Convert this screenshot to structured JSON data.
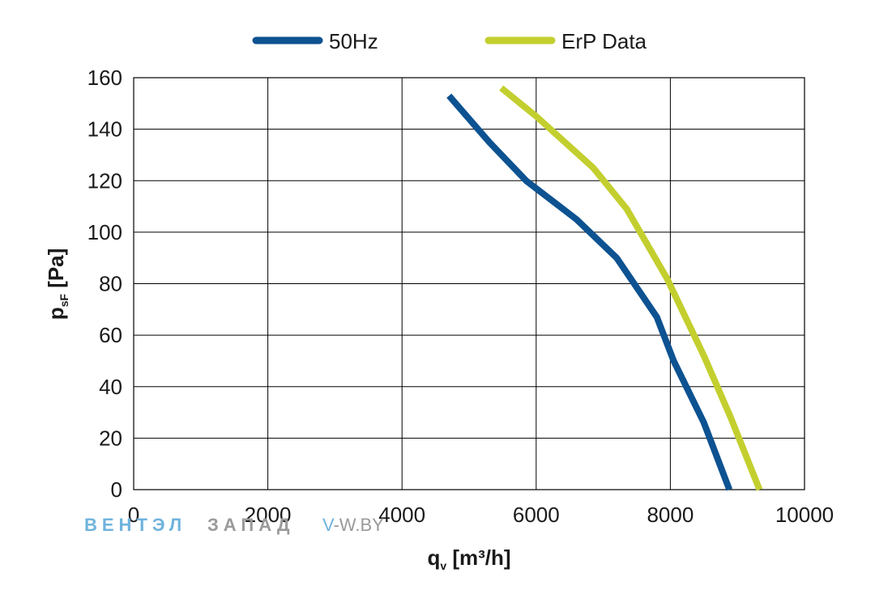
{
  "chart_data": {
    "type": "line",
    "title": "",
    "xlabel": "q",
    "xlabel_sub": "v",
    "xlabel_unit": " [m³/h]",
    "ylabel": "p",
    "ylabel_sub": "sF",
    "ylabel_unit": " [Pa]",
    "xlim": [
      0,
      10000
    ],
    "ylim": [
      0,
      160
    ],
    "xticks": [
      "0",
      "2000",
      "4000",
      "6000",
      "8000",
      "10000"
    ],
    "yticks": [
      "0",
      "20",
      "40",
      "60",
      "80",
      "100",
      "120",
      "140",
      "160"
    ],
    "grid": true,
    "legend_position": "top-center",
    "series": [
      {
        "name": "50Hz",
        "color": "#0d5291",
        "points": [
          [
            4700,
            153
          ],
          [
            5300,
            135
          ],
          [
            5850,
            120
          ],
          [
            6600,
            105
          ],
          [
            7200,
            90
          ],
          [
            7800,
            67
          ],
          [
            8050,
            50
          ],
          [
            8500,
            26
          ],
          [
            8880,
            0
          ]
        ]
      },
      {
        "name": "ErP Data",
        "color": "#c3cf2e",
        "points": [
          [
            5480,
            156
          ],
          [
            6000,
            145
          ],
          [
            6850,
            125
          ],
          [
            7350,
            109
          ],
          [
            7950,
            82
          ],
          [
            8500,
            52
          ],
          [
            8900,
            28
          ],
          [
            9330,
            0
          ]
        ]
      }
    ]
  },
  "watermark": {
    "brand_blue": "ВЕНТЭЛ",
    "brand_gray": "ЗАПАД",
    "site_v": "V",
    "site_rest": "-W.BY"
  }
}
